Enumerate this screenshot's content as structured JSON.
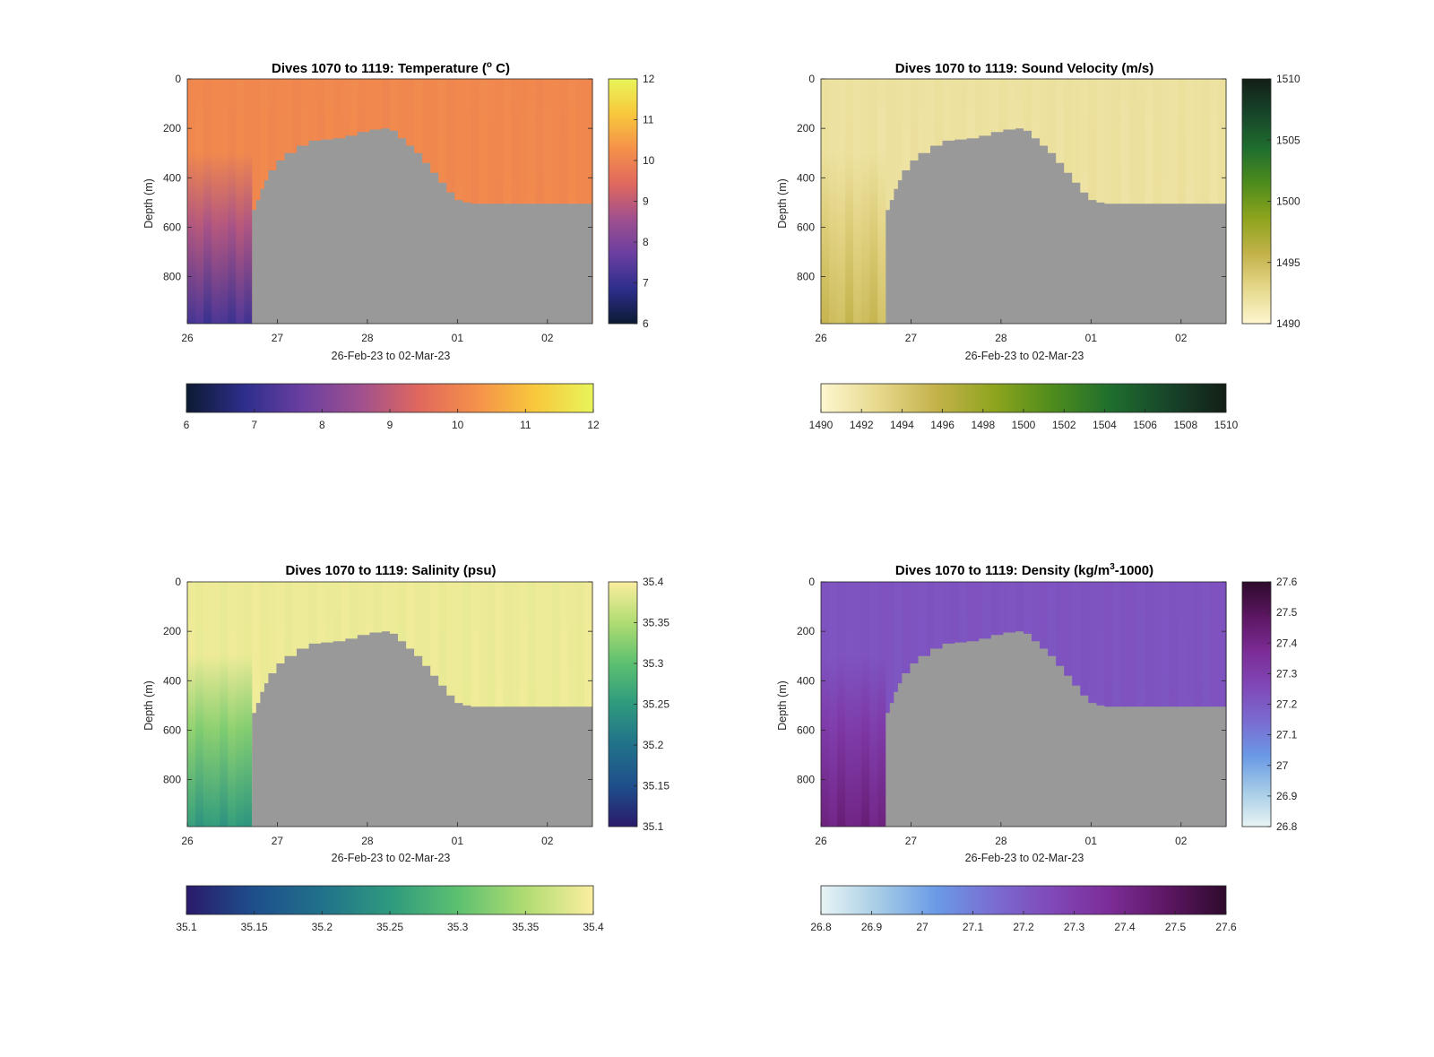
{
  "figure": {
    "background": "#ffffff"
  },
  "chart_data": [
    {
      "type": "heatmap",
      "title": "Dives 1070 to 1119: Temperature (° C)",
      "title_parts": {
        "prefix": "Dives 1070 to 1119: Temperature (",
        "sup": "o",
        "suffix": " C)"
      },
      "xlabel": "26-Feb-23 to 02-Mar-23",
      "ylabel": "Depth (m)",
      "x_tick_labels": [
        "26",
        "27",
        "28",
        "01",
        "02"
      ],
      "y_ticks": [
        0,
        200,
        400,
        600,
        800
      ],
      "ylim": [
        0,
        990
      ],
      "colorbar": {
        "ticks": [
          6,
          7,
          8,
          9,
          10,
          11,
          12
        ],
        "range": [
          6,
          12
        ],
        "colors": [
          "#0c1a32",
          "#2e2e8c",
          "#6a3fa0",
          "#a0508e",
          "#e0685e",
          "#f5914a",
          "#f8c83c",
          "#e8f55a"
        ]
      },
      "horizontal_colorbar_ticks": [
        "6",
        "7",
        "8",
        "9",
        "10",
        "11",
        "12"
      ],
      "field": {
        "upper_value": 10.1,
        "deep_value": 7.2
      }
    },
    {
      "type": "heatmap",
      "title": "Dives 1070 to 1119: Sound Velocity (m/s)",
      "xlabel": "26-Feb-23 to 02-Mar-23",
      "ylabel": "Depth (m)",
      "x_tick_labels": [
        "26",
        "27",
        "28",
        "01",
        "02"
      ],
      "y_ticks": [
        0,
        200,
        400,
        600,
        800
      ],
      "ylim": [
        0,
        990
      ],
      "colorbar": {
        "ticks": [
          1490,
          1495,
          1500,
          1505,
          1510
        ],
        "range": [
          1490,
          1510
        ],
        "colors": [
          "#fdf6cf",
          "#e6d88c",
          "#c3b24a",
          "#8ea41e",
          "#4e8c1c",
          "#1f6e2e",
          "#17452a",
          "#131e16"
        ]
      },
      "horizontal_colorbar_ticks": [
        "1490",
        "1492",
        "1494",
        "1496",
        "1498",
        "1500",
        "1502",
        "1504",
        "1506",
        "1508",
        "1510"
      ],
      "field": {
        "upper_value": 1492,
        "deep_value": 1495
      }
    },
    {
      "type": "heatmap",
      "title": "Dives 1070 to 1119: Salinity (psu)",
      "xlabel": "26-Feb-23 to 02-Mar-23",
      "ylabel": "Depth (m)",
      "x_tick_labels": [
        "26",
        "27",
        "28",
        "01",
        "02"
      ],
      "y_ticks": [
        0,
        200,
        400,
        600,
        800
      ],
      "ylim": [
        0,
        990
      ],
      "colorbar": {
        "ticks": [
          35.1,
          35.15,
          35.2,
          35.25,
          35.3,
          35.35,
          35.4
        ],
        "range": [
          35.1,
          35.4
        ],
        "colors": [
          "#2a1a6c",
          "#1e4f8c",
          "#21718a",
          "#2e9a7e",
          "#5cc070",
          "#b0dc72",
          "#fbeea0"
        ]
      },
      "horizontal_colorbar_ticks": [
        "35.1",
        "35.15",
        "35.2",
        "35.25",
        "35.3",
        "35.35",
        "35.4"
      ],
      "field": {
        "upper_value": 35.39,
        "deep_value": 35.25
      }
    },
    {
      "type": "heatmap",
      "title": "Dives 1070 to 1119: Density (kg/m³-1000)",
      "title_parts": {
        "prefix": "Dives 1070 to 1119: Density (kg/m",
        "sup": "3",
        "suffix": "-1000)"
      },
      "xlabel": "26-Feb-23 to 02-Mar-23",
      "ylabel": "Depth (m)",
      "x_tick_labels": [
        "26",
        "27",
        "28",
        "01",
        "02"
      ],
      "y_ticks": [
        0,
        200,
        400,
        600,
        800
      ],
      "ylim": [
        0,
        990
      ],
      "colorbar": {
        "ticks": [
          26.8,
          26.9,
          27,
          27.1,
          27.2,
          27.3,
          27.4,
          27.5,
          27.6
        ],
        "range": [
          26.8,
          27.6
        ],
        "colors": [
          "#e8f4f4",
          "#a6cce6",
          "#6a9ae6",
          "#7a6cd2",
          "#8048b8",
          "#7c2c96",
          "#5c1662",
          "#2e0a2c"
        ]
      },
      "horizontal_colorbar_ticks": [
        "26.8",
        "26.9",
        "27",
        "27.1",
        "27.2",
        "27.3",
        "27.4",
        "27.5",
        "27.6"
      ],
      "field": {
        "upper_value": 27.22,
        "deep_value": 27.42
      }
    }
  ],
  "seafloor": {
    "color": "#999999",
    "x_fraction": [
      0.16,
      0.17,
      0.18,
      0.19,
      0.2,
      0.22,
      0.24,
      0.27,
      0.3,
      0.33,
      0.36,
      0.39,
      0.42,
      0.45,
      0.48,
      0.5,
      0.52,
      0.54,
      0.56,
      0.58,
      0.6,
      0.62,
      0.64,
      0.66,
      0.68,
      0.7,
      0.8,
      0.9,
      0.98,
      1.0
    ],
    "depth_m": [
      530,
      490,
      445,
      410,
      370,
      330,
      300,
      270,
      250,
      245,
      240,
      230,
      215,
      205,
      200,
      210,
      240,
      270,
      300,
      340,
      380,
      420,
      460,
      490,
      500,
      505,
      505,
      505,
      505,
      600
    ]
  }
}
